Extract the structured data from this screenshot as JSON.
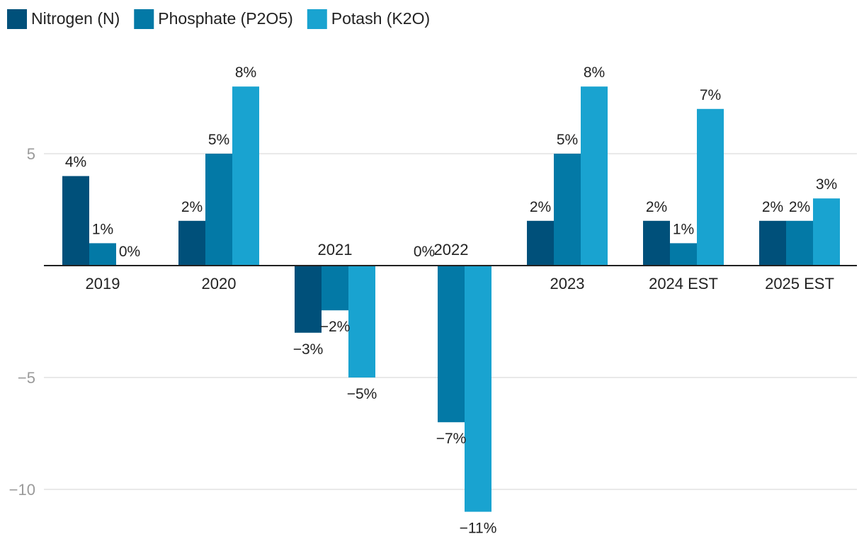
{
  "chart_data": {
    "type": "bar",
    "title": "",
    "xlabel": "",
    "ylabel": "",
    "ylim": [
      -11.5,
      9
    ],
    "yticks": [
      5,
      -5,
      -10
    ],
    "yticks_labels": [
      "5",
      "−5",
      "−10"
    ],
    "grid": true,
    "legend_position": "top-left",
    "categories": [
      "2019",
      "2020",
      "2021",
      "2022",
      "2023",
      "2024 EST",
      "2025 EST"
    ],
    "series": [
      {
        "name": "Nitrogen (N)",
        "color": "#00507a",
        "values": [
          4,
          2,
          -3,
          0,
          2,
          2,
          2
        ],
        "labels": [
          "4%",
          "2%",
          "−3%",
          "0%",
          "2%",
          "2%",
          "2%"
        ]
      },
      {
        "name": "Phosphate (P2O5)",
        "color": "#0379a6",
        "values": [
          1,
          5,
          -2,
          -7,
          5,
          1,
          2
        ],
        "labels": [
          "1%",
          "5%",
          "−2%",
          "−7%",
          "5%",
          "1%",
          "2%"
        ]
      },
      {
        "name": "Potash (K2O)",
        "color": "#19a3d0",
        "values": [
          0,
          8,
          -5,
          -11,
          8,
          7,
          3
        ],
        "labels": [
          "0%",
          "8%",
          "−5%",
          "−11%",
          "8%",
          "7%",
          "3%"
        ]
      }
    ]
  }
}
